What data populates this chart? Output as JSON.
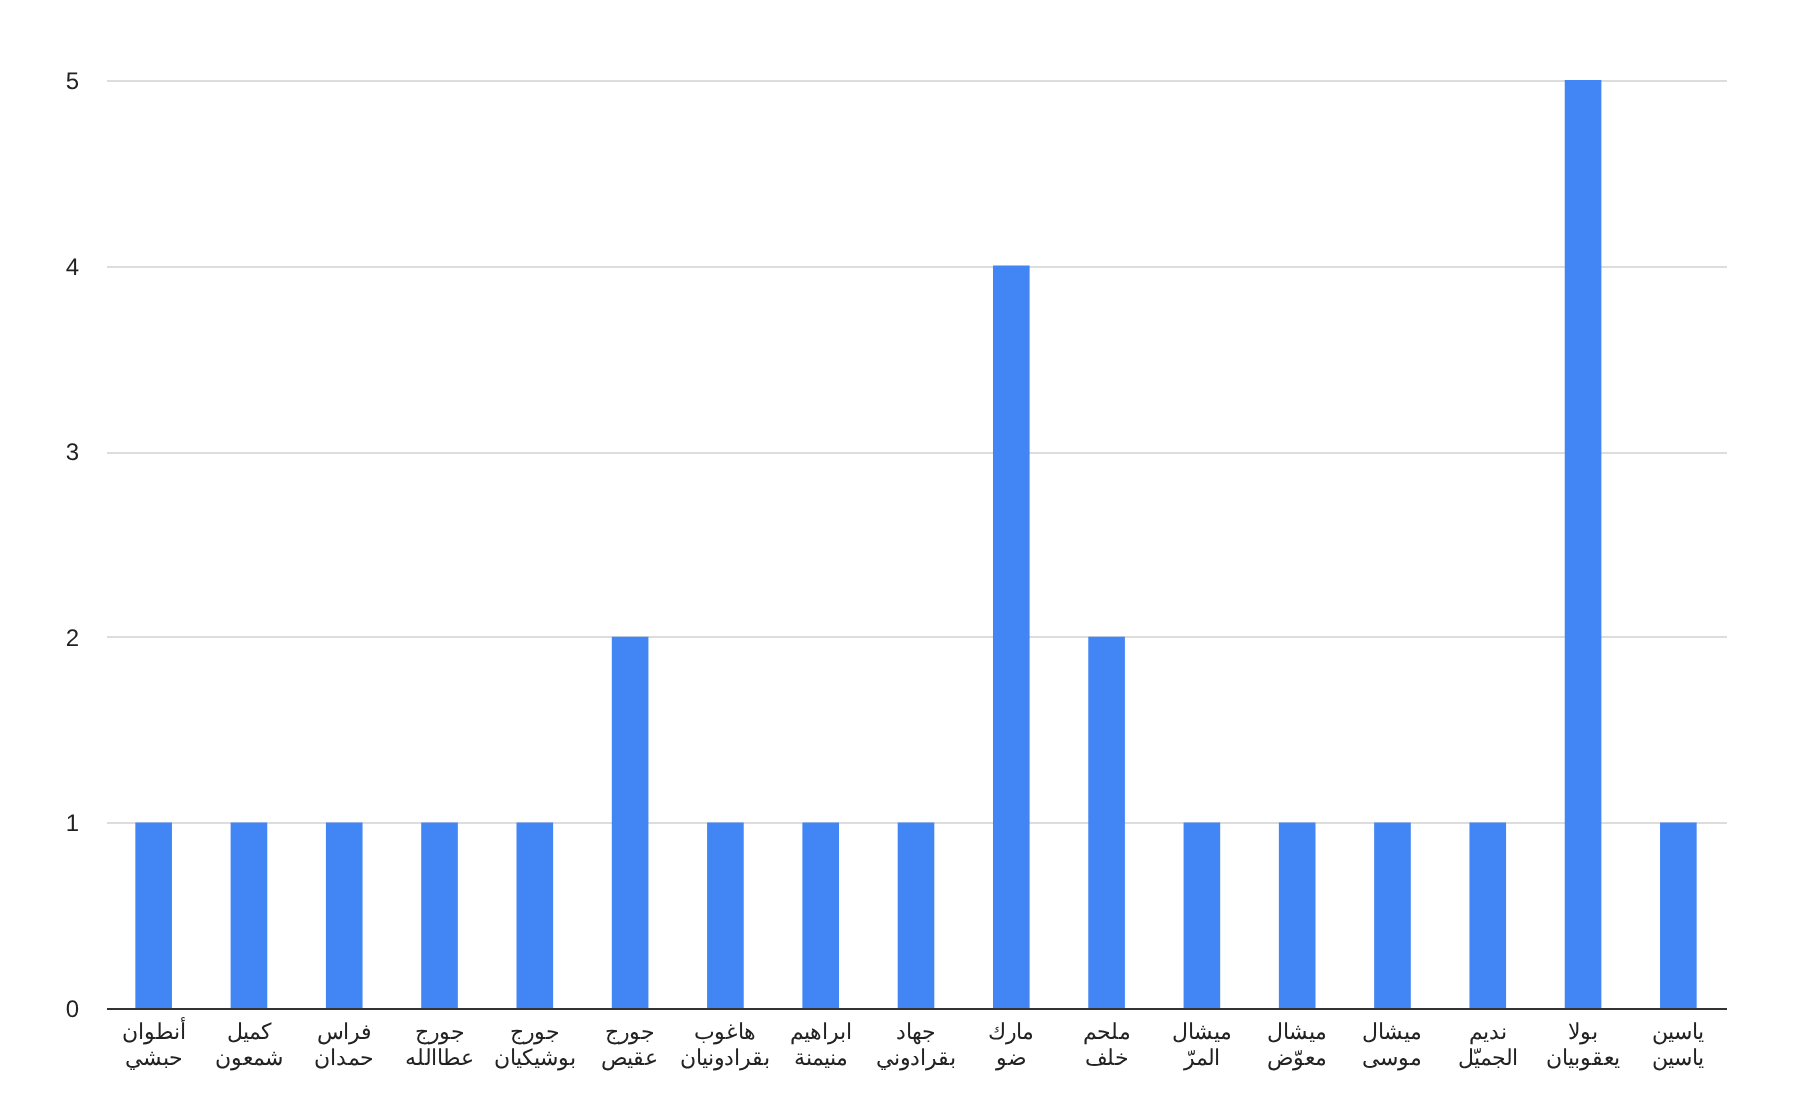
{
  "chart_data": {
    "type": "bar",
    "categories": [
      "أنطوان حبشي",
      "كميل شمعون",
      "فراس حمدان",
      "جورج عطاالله",
      "جورج بوشيكيان",
      "جورج عقيص",
      "هاغوب بقرادونيان",
      "ابراهيم منيمنة",
      "جهاد بقرادوني",
      "مارك ضو",
      "ملحم خلف",
      "ميشال المرّ",
      "ميشال معوّض",
      "ميشال موسى",
      "نديم الجميّل",
      "بولا يعقوبيان",
      "ياسين ياسين"
    ],
    "series": [
      {
        "color": "#4285f4",
        "values": [
          1,
          1,
          1,
          1,
          1,
          2,
          1,
          1,
          1,
          4,
          2,
          1,
          1,
          1,
          1,
          5,
          1
        ]
      }
    ],
    "ylim": [
      0,
      5
    ],
    "yticks": [
      0,
      1,
      2,
      3,
      4,
      5
    ],
    "grid": "y"
  }
}
